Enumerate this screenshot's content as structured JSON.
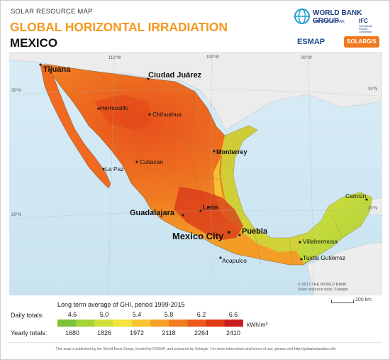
{
  "header": {
    "kicker": "SOLAR RESOURCE MAP",
    "title": "GLOBAL HORIZONTAL IRRADIATION",
    "country": "MEXICO"
  },
  "logos": {
    "world_bank": "WORLD BANK GROUP",
    "world_bank_sub": "THE WORLD BANK",
    "ifc": "IFC",
    "ifc_sub": "International Finance Corporation",
    "esmap": "ESMAP",
    "solargis": "SOLARGIS"
  },
  "map": {
    "graticule_labels": {
      "lon_110": "110°W",
      "lon_100": "100°W",
      "lon_90": "90°W",
      "lat_30_left": "30°N",
      "lat_30_right": "30°N",
      "lat_20_left": "20°N",
      "lat_20_right": "20°N"
    },
    "cities": {
      "tijuana": "Tijuana",
      "ciudad_juarez": "Ciudad Juárez",
      "hermosillo": "Hermosillo",
      "chihuahua": "Chihuahua",
      "monterrey": "Monterrey",
      "culiacan": "Culiacán",
      "la_paz": "La Paz",
      "guadalajara": "Guadalajara",
      "leon": "León",
      "mexico_city": "Mexico City",
      "puebla": "Puebla",
      "acapulco": "Acapulco",
      "cancun": "Cancún",
      "villahermosa": "Villahermosa",
      "tuxtla": "Tuxtla Gutiérrez"
    },
    "copyright": [
      "© 2017 THE WORLD BANK",
      "Solar resource data: Solargis"
    ],
    "scale_label": "200 km"
  },
  "legend": {
    "caption": "Long term average of GHI, period 1999-2015",
    "daily_label": "Daily totals:",
    "yearly_label": "Yearly totals:",
    "unit": "kWh/m²",
    "daily_ticks": [
      "4.6",
      "5.0",
      "5.4",
      "5.8",
      "6.2",
      "6.6"
    ],
    "yearly_ticks": [
      "1680",
      "1826",
      "1972",
      "2118",
      "2264",
      "2410"
    ],
    "colors": [
      "#7dc23b",
      "#a8d23a",
      "#d3e03c",
      "#f4e43b",
      "#f8c531",
      "#f6a028",
      "#f27d20",
      "#ec5a1b",
      "#e03a16",
      "#c81e1e"
    ]
  },
  "footer": {
    "text": "This map is published by the World Bank Group, funded by ESMAP, and prepared by Solargis. For more information and terms of use, please visit http://globalsolaratlas.info"
  }
}
